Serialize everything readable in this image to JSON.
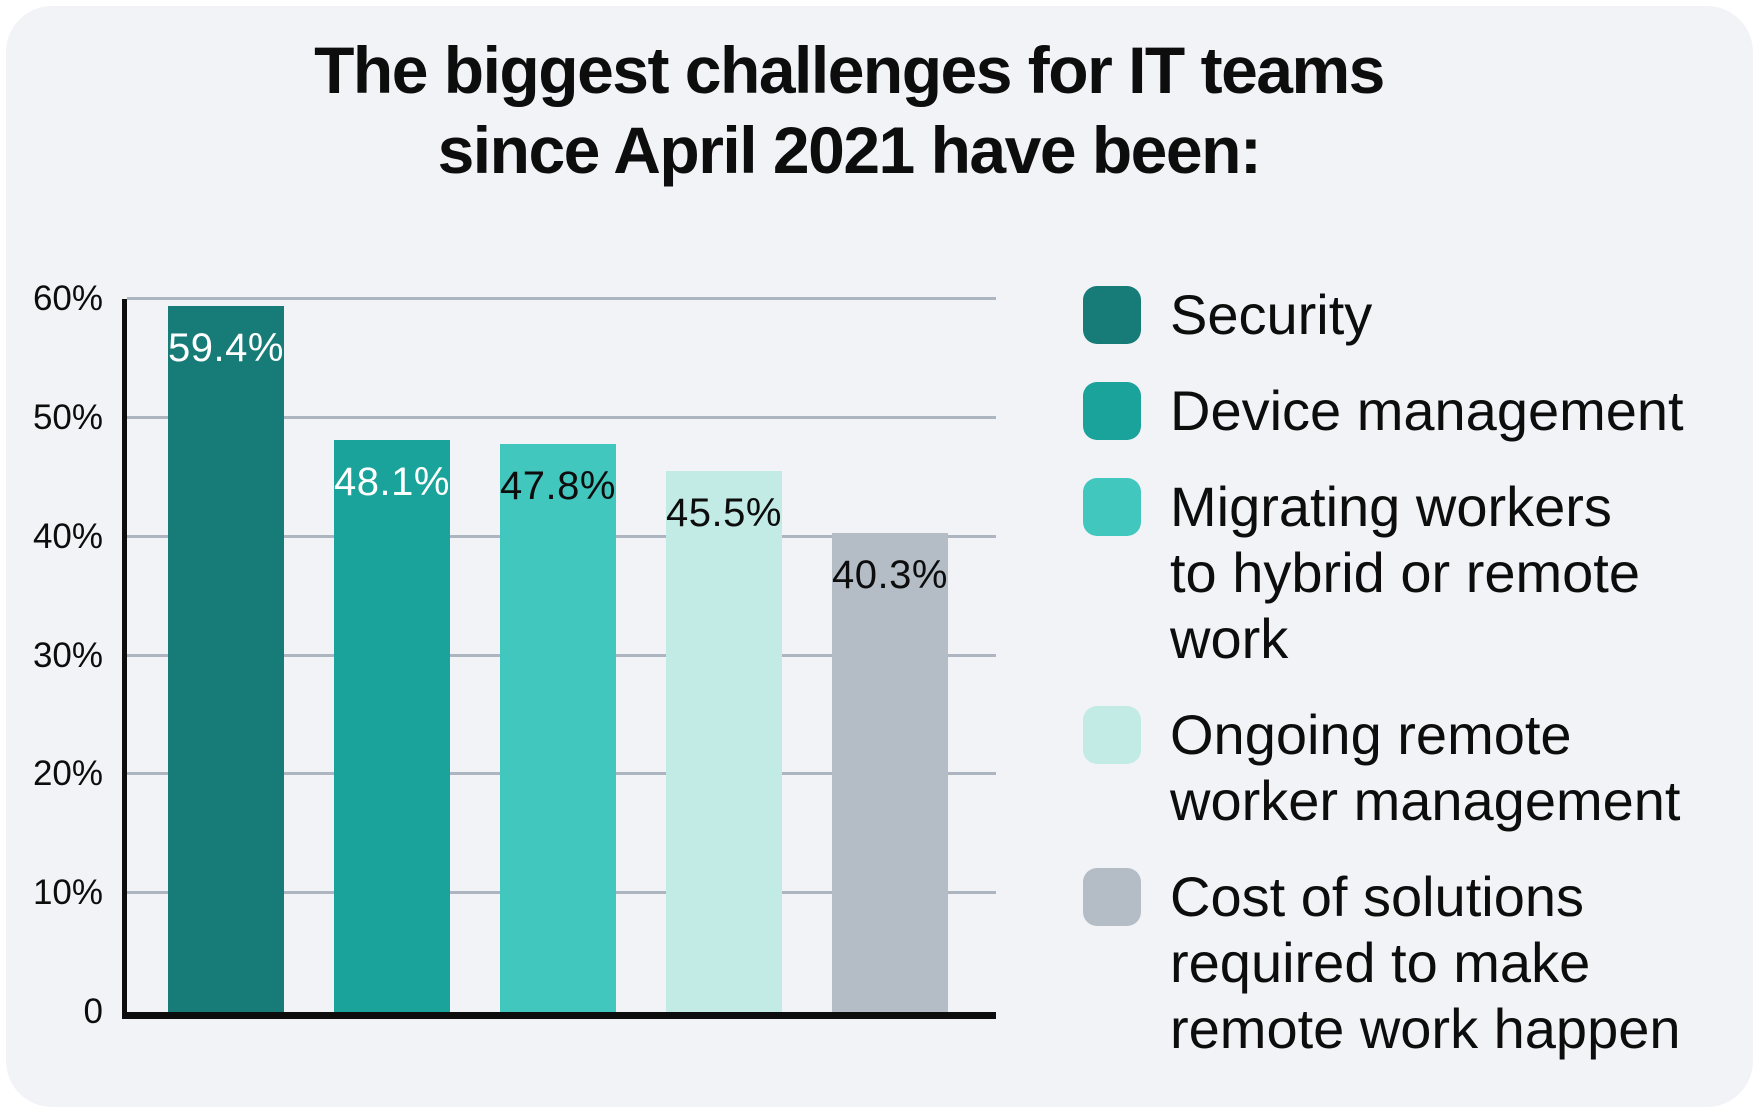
{
  "card": {
    "background_color": "#f2f3f7"
  },
  "chart": {
    "title_display": "The biggest challenges for IT teams\nsince April 2021 have been:"
  },
  "chart_data": {
    "type": "bar",
    "title": "The biggest challenges for IT teams since April 2021 have been:",
    "xlabel": "",
    "ylabel": "",
    "categories": [
      "Security",
      "Device management",
      "Migrating workers to hybrid or remote work",
      "Ongoing remote worker management",
      "Cost of solutions required to make remote work happen"
    ],
    "values": [
      59.4,
      48.1,
      47.8,
      45.5,
      40.3
    ],
    "value_labels": [
      "59.4%",
      "48.1%",
      "47.8%",
      "45.5%",
      "40.3%"
    ],
    "bar_colors": [
      "#177c78",
      "#1aa39b",
      "#42c7bf",
      "#c3ebe6",
      "#b4bcc5"
    ],
    "value_label_colors": [
      "#ffffff",
      "#ffffff",
      "#0d0d0d",
      "#0d0d0d",
      "#0d0d0d"
    ],
    "ylim": [
      0,
      60
    ],
    "ytick_values": [
      60,
      50,
      40,
      30,
      20,
      10,
      0
    ],
    "ytick_labels": [
      "60%",
      "50%",
      "40%",
      "30%",
      "20%",
      "10%",
      "0"
    ],
    "grid": true,
    "gridline_color": "#adb5c0",
    "axis_color": "#0d0d0d",
    "legend_position": "right",
    "legend": [
      {
        "label": "Security",
        "label_display": "Security",
        "color": "#177c78"
      },
      {
        "label": "Device management",
        "label_display": "Device management",
        "color": "#1aa39b"
      },
      {
        "label": "Migrating workers to hybrid or remote work",
        "label_display": "Migrating workers\nto hybrid or remote\nwork",
        "color": "#42c7bf"
      },
      {
        "label": "Ongoing remote worker management",
        "label_display": "Ongoing remote\nworker management",
        "color": "#c3ebe6"
      },
      {
        "label": "Cost of solutions required to make remote work happen",
        "label_display": "Cost of solutions\nrequired to make\nremote work happen",
        "color": "#b4bcc5"
      }
    ]
  }
}
